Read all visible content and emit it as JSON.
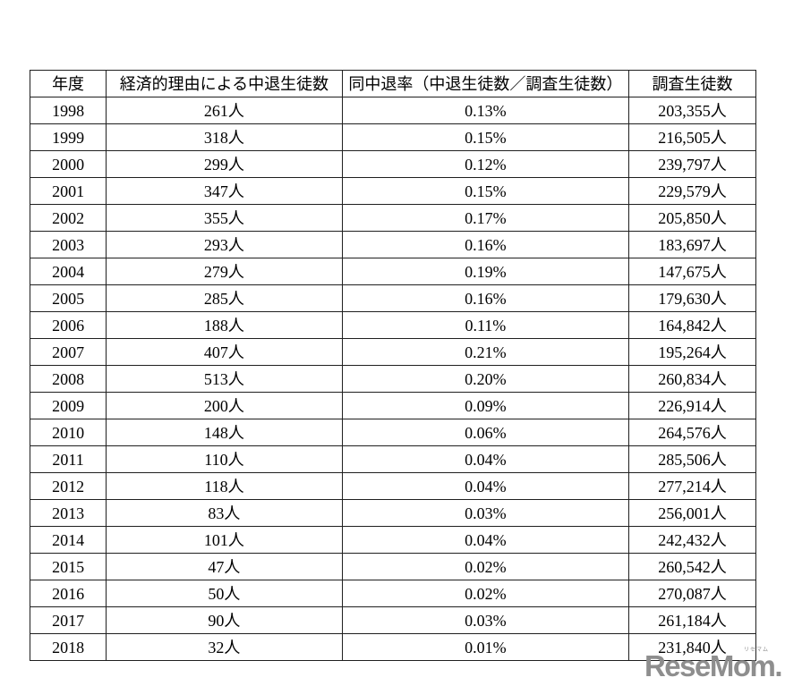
{
  "table": {
    "headers": [
      "年度",
      "経済的理由による中退生徒数",
      "同中退率（中退生徒数／調査生徒数）",
      "調査生徒数"
    ],
    "rows": [
      [
        "1998",
        "261人",
        "0.13%",
        "203,355人"
      ],
      [
        "1999",
        "318人",
        "0.15%",
        "216,505人"
      ],
      [
        "2000",
        "299人",
        "0.12%",
        "239,797人"
      ],
      [
        "2001",
        "347人",
        "0.15%",
        "229,579人"
      ],
      [
        "2002",
        "355人",
        "0.17%",
        "205,850人"
      ],
      [
        "2003",
        "293人",
        "0.16%",
        "183,697人"
      ],
      [
        "2004",
        "279人",
        "0.19%",
        "147,675人"
      ],
      [
        "2005",
        "285人",
        "0.16%",
        "179,630人"
      ],
      [
        "2006",
        "188人",
        "0.11%",
        "164,842人"
      ],
      [
        "2007",
        "407人",
        "0.21%",
        "195,264人"
      ],
      [
        "2008",
        "513人",
        "0.20%",
        "260,834人"
      ],
      [
        "2009",
        "200人",
        "0.09%",
        "226,914人"
      ],
      [
        "2010",
        "148人",
        "0.06%",
        "264,576人"
      ],
      [
        "2011",
        "110人",
        "0.04%",
        "285,506人"
      ],
      [
        "2012",
        "118人",
        "0.04%",
        "277,214人"
      ],
      [
        "2013",
        "83人",
        "0.03%",
        "256,001人"
      ],
      [
        "2014",
        "101人",
        "0.04%",
        "242,432人"
      ],
      [
        "2015",
        "47人",
        "0.02%",
        "260,542人"
      ],
      [
        "2016",
        "50人",
        "0.02%",
        "270,087人"
      ],
      [
        "2017",
        "90人",
        "0.03%",
        "261,184人"
      ],
      [
        "2018",
        "32人",
        "0.01%",
        "231,840人"
      ]
    ]
  },
  "logo": {
    "ruby": "リセマム",
    "wordmark": "ReseMom.",
    "color": "#8e8e8e"
  },
  "chart_data": {
    "type": "table",
    "columns": [
      "年度",
      "経済的理由による中退生徒数",
      "同中退率（中退生徒数／調査生徒数）",
      "調査生徒数"
    ],
    "years": [
      1998,
      1999,
      2000,
      2001,
      2002,
      2003,
      2004,
      2005,
      2006,
      2007,
      2008,
      2009,
      2010,
      2011,
      2012,
      2013,
      2014,
      2015,
      2016,
      2017,
      2018
    ],
    "dropout_counts": [
      261,
      318,
      299,
      347,
      355,
      293,
      279,
      285,
      188,
      407,
      513,
      200,
      148,
      110,
      118,
      83,
      101,
      47,
      50,
      90,
      32
    ],
    "dropout_rates_percent": [
      0.13,
      0.15,
      0.12,
      0.15,
      0.17,
      0.16,
      0.19,
      0.16,
      0.11,
      0.21,
      0.2,
      0.09,
      0.06,
      0.04,
      0.04,
      0.03,
      0.04,
      0.02,
      0.02,
      0.03,
      0.01
    ],
    "surveyed_counts": [
      203355,
      216505,
      239797,
      229579,
      205850,
      183697,
      147675,
      179630,
      164842,
      195264,
      260834,
      226914,
      264576,
      285506,
      277214,
      256001,
      242432,
      260542,
      270087,
      261184,
      231840
    ]
  }
}
